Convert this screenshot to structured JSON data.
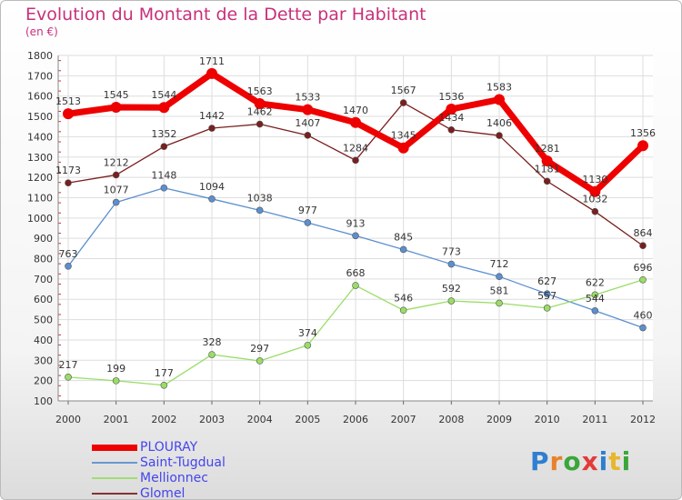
{
  "title": "Evolution du Montant de la Dette par Habitant",
  "subtitle": "(en €)",
  "brand": {
    "letters": [
      {
        "ch": "P",
        "color": "#2f7fd0"
      },
      {
        "ch": "r",
        "color": "#e8812a"
      },
      {
        "ch": "o",
        "color": "#3aa63a"
      },
      {
        "ch": "x",
        "color": "#e33a3a"
      },
      {
        "ch": "i",
        "color": "#2f7fd0"
      },
      {
        "ch": "t",
        "color": "#e8b62a"
      },
      {
        "ch": "i",
        "color": "#3aa63a"
      }
    ]
  },
  "chart_data": {
    "type": "line",
    "x": [
      "2000",
      "2001",
      "2002",
      "2003",
      "2004",
      "2005",
      "2006",
      "2007",
      "2008",
      "2009",
      "2010",
      "2011",
      "2012"
    ],
    "ylim": [
      100,
      1800
    ],
    "yticks": [
      "100",
      "200",
      "300",
      "400",
      "500",
      "600",
      "700",
      "800",
      "900",
      "1000",
      "1100",
      "1200",
      "1300",
      "1400",
      "1500",
      "1600",
      "1700",
      "1800"
    ],
    "grid": true,
    "legend_position": "bottom-left",
    "series": [
      {
        "name": "PLOURAY",
        "color": "#ee0000",
        "values": [
          1513,
          1545,
          1544,
          1711,
          1563,
          1533,
          1470,
          1345,
          1536,
          1583,
          1281,
          1130,
          1356
        ],
        "labels": [
          "1513",
          "1545",
          "1544",
          "1711",
          "1563",
          "1533",
          "1470",
          "1345",
          "1536",
          "1583",
          "1281",
          "1130",
          "1356"
        ]
      },
      {
        "name": "Saint-Tugdual",
        "color": "#5b8fd0",
        "values": [
          763,
          1077,
          1148,
          1094,
          1038,
          977,
          913,
          845,
          773,
          712,
          627,
          544,
          460
        ],
        "labels": [
          "763",
          "1077",
          "1148",
          "1094",
          "1038",
          "977",
          "913",
          "845",
          "773",
          "712",
          "627",
          "544",
          "460"
        ]
      },
      {
        "name": "Mellionnec",
        "color": "#99dd66",
        "values": [
          217,
          199,
          177,
          328,
          297,
          374,
          668,
          546,
          592,
          581,
          557,
          622,
          696
        ],
        "labels": [
          "217",
          "199",
          "177",
          "328",
          "297",
          "374",
          "668",
          "546",
          "592",
          "581",
          "557",
          "622",
          "696"
        ]
      },
      {
        "name": "Glomel",
        "color": "#7a1e1e",
        "values": [
          1173,
          1212,
          1352,
          1442,
          1462,
          1407,
          1284,
          1567,
          1434,
          1406,
          1181,
          1032,
          864
        ],
        "labels": [
          "1173",
          "1212",
          "1352",
          "1442",
          "1462",
          "1407",
          "1284",
          "1567",
          "1434",
          "1406",
          "1181",
          "1032",
          "864"
        ]
      }
    ]
  }
}
